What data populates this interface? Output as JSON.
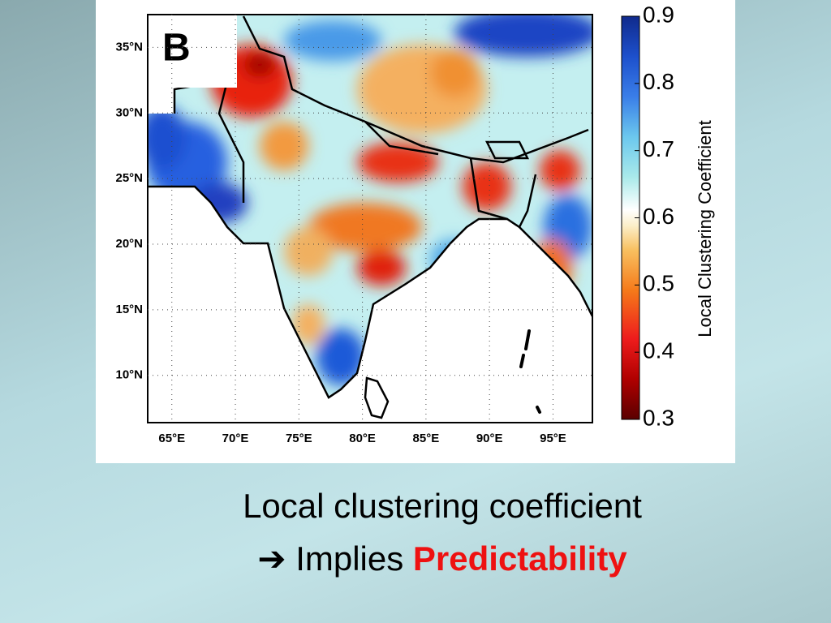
{
  "panel_label": "B",
  "map": {
    "lon_lim": [
      63.1,
      98.1
    ],
    "lat_lim": [
      6.4,
      37.5
    ],
    "lat_ticks": [
      {
        "value": 35,
        "label": "35°N"
      },
      {
        "value": 30,
        "label": "30°N"
      },
      {
        "value": 25,
        "label": "25°N"
      },
      {
        "value": 20,
        "label": "20°N"
      },
      {
        "value": 15,
        "label": "15°N"
      },
      {
        "value": 10,
        "label": "10°N"
      }
    ],
    "lon_ticks": [
      {
        "value": 65,
        "label": "65°E"
      },
      {
        "value": 70,
        "label": "70°E"
      },
      {
        "value": 75,
        "label": "75°E"
      },
      {
        "value": 80,
        "label": "80°E"
      },
      {
        "value": 85,
        "label": "85°E"
      },
      {
        "value": 90,
        "label": "90°E"
      },
      {
        "value": 95,
        "label": "95°E"
      }
    ],
    "grid": true,
    "colorbar": {
      "label": "Local Clustering Coefficient",
      "lim": [
        0.3,
        0.9
      ],
      "ticks": [
        0.3,
        0.4,
        0.5,
        0.6,
        0.7,
        0.8,
        0.9
      ]
    }
  },
  "caption": {
    "line1": "Local clustering coefficient",
    "arrow": "➔",
    "line2": "Implies",
    "highlight": "Predictability"
  }
}
